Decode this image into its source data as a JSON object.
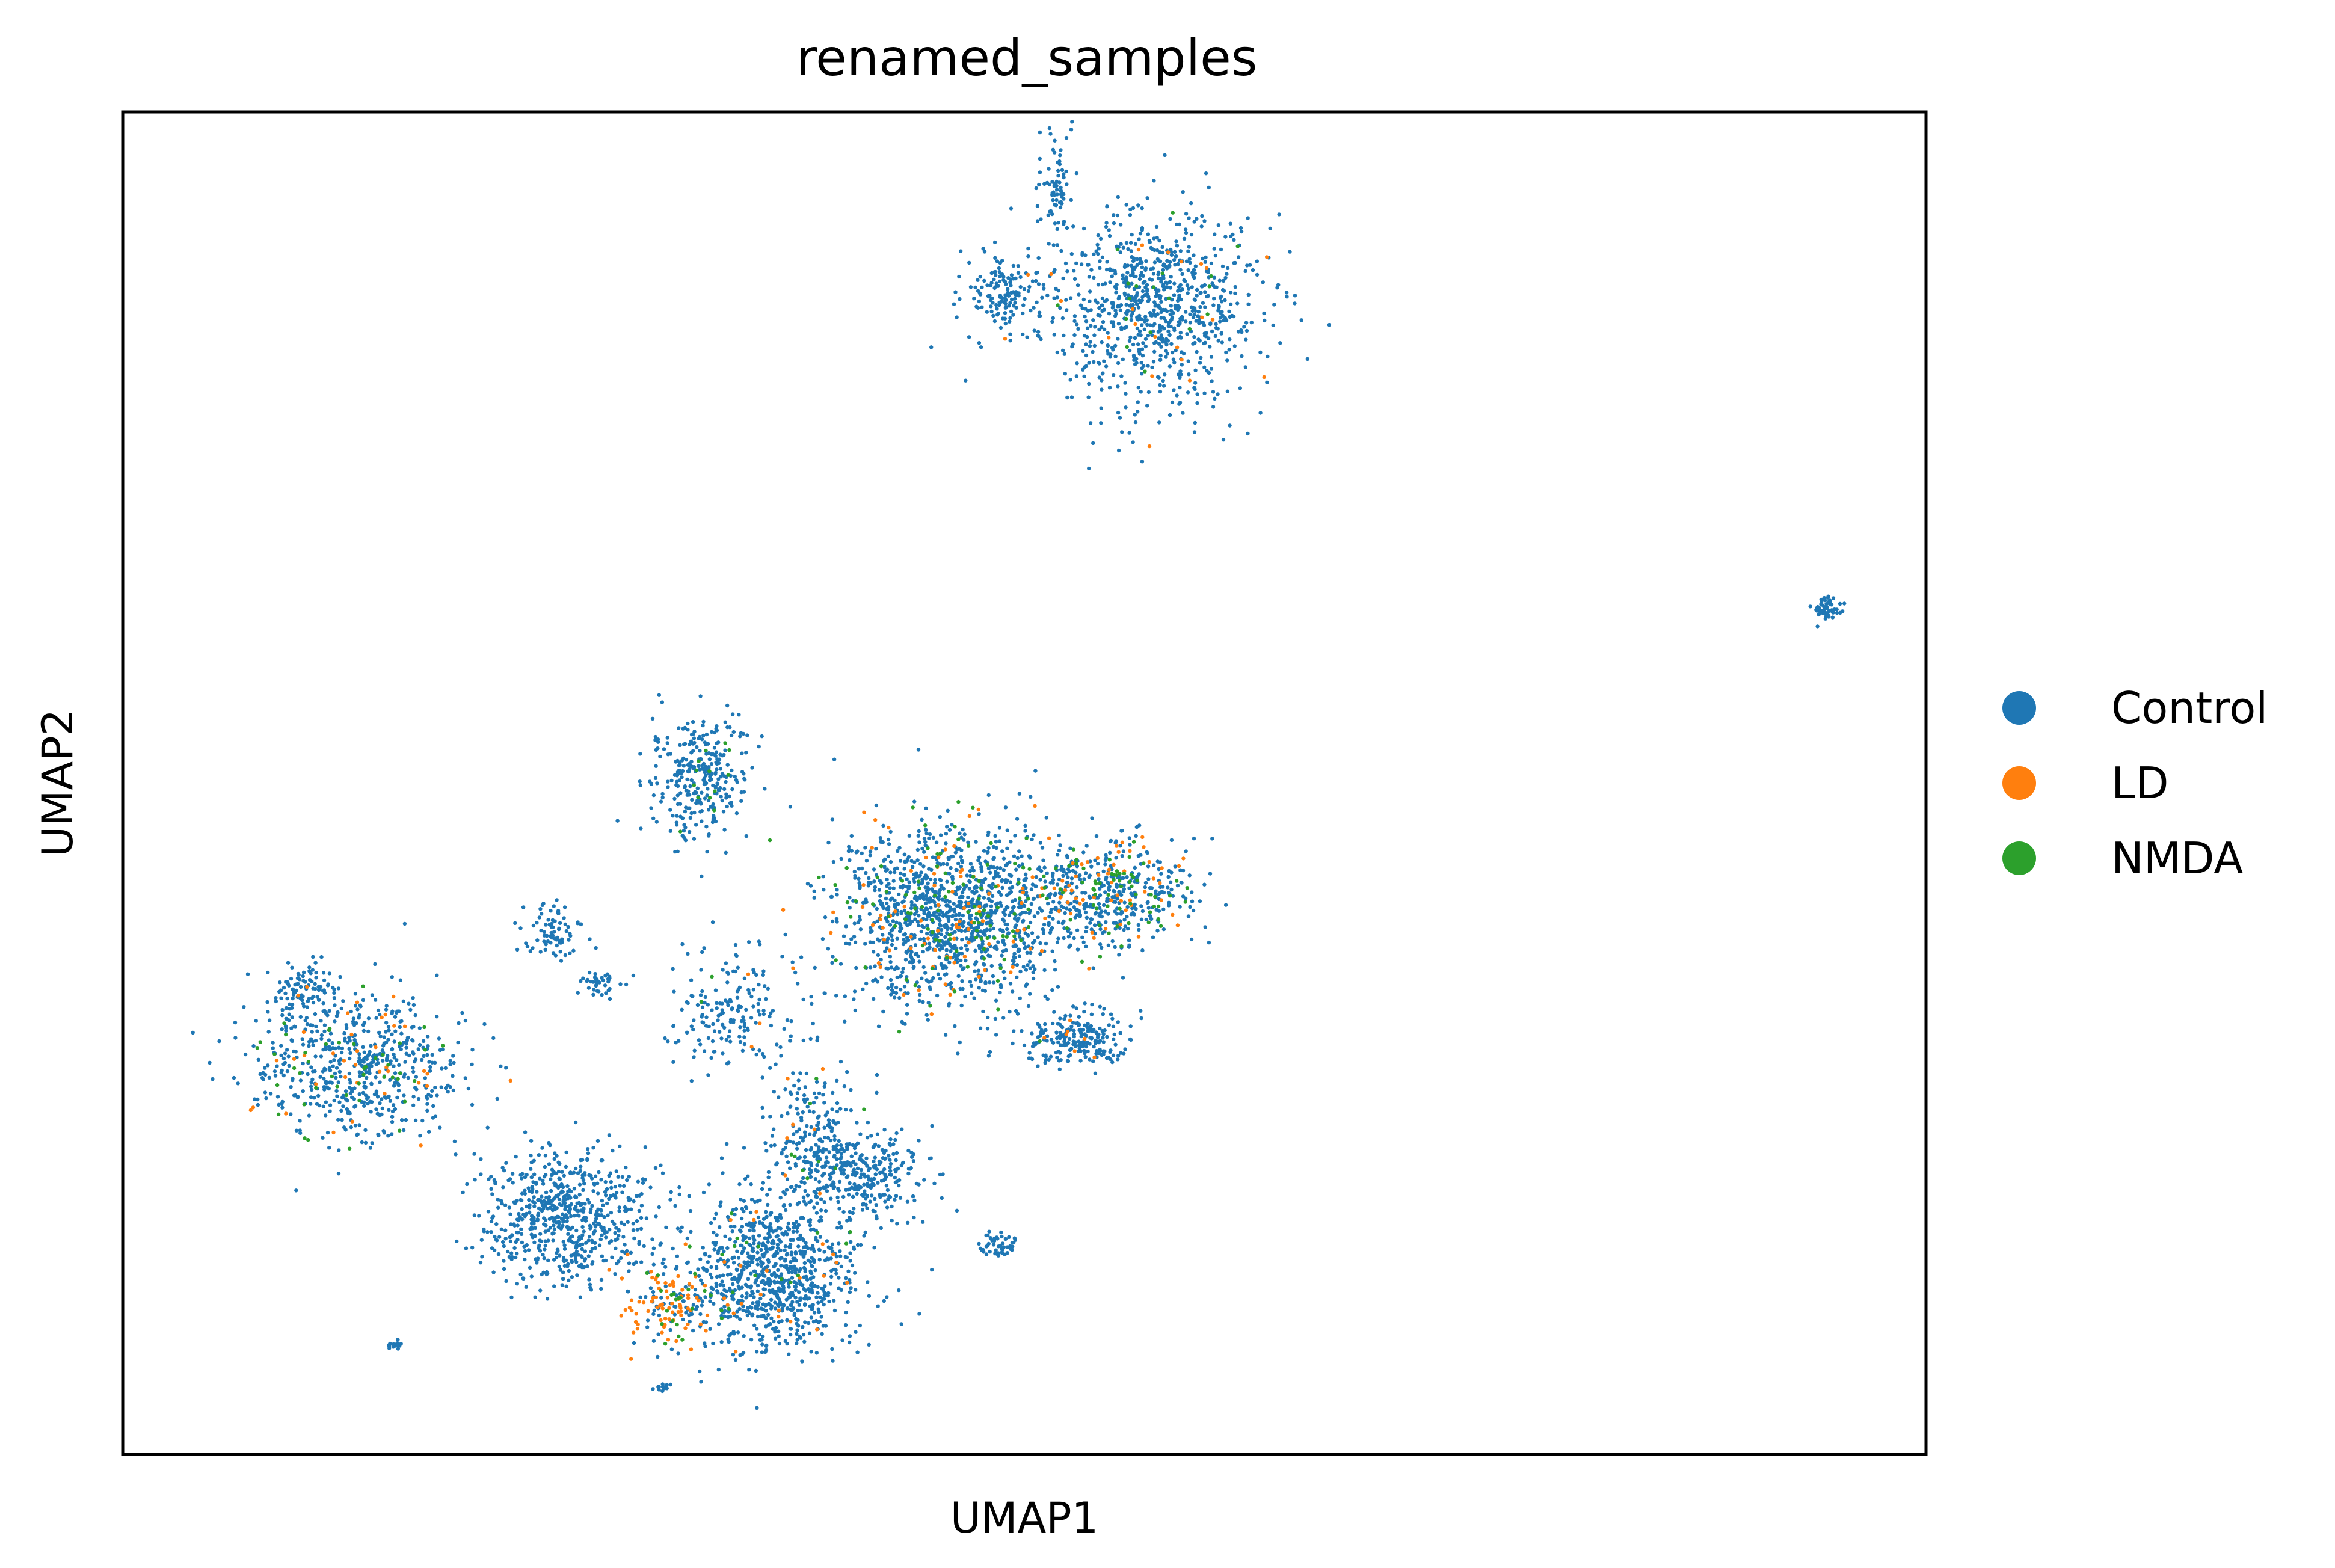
{
  "chart_data": {
    "type": "scatter",
    "title": "renamed_samples",
    "xlabel": "UMAP1",
    "ylabel": "UMAP2",
    "xlim": [
      0,
      1
    ],
    "ylim": [
      0,
      1
    ],
    "grid": false,
    "ticks": false,
    "legend_placement": "right",
    "series": [
      {
        "name": "Control",
        "color": "#1f77b4"
      },
      {
        "name": "LD",
        "color": "#ff7f0e"
      },
      {
        "name": "NMDA",
        "color": "#2ca02c"
      }
    ],
    "clusters": [
      {
        "cx": 0.57,
        "cy": 0.855,
        "rx": 0.055,
        "ry": 0.065,
        "n": 900,
        "mix": [
          0.96,
          0.02,
          0.02
        ]
      },
      {
        "cx": 0.49,
        "cy": 0.865,
        "rx": 0.02,
        "ry": 0.025,
        "n": 140,
        "mix": [
          0.98,
          0.01,
          0.01
        ]
      },
      {
        "cx": 0.518,
        "cy": 0.95,
        "rx": 0.008,
        "ry": 0.04,
        "n": 70,
        "mix": [
          1,
          0,
          0
        ]
      },
      {
        "cx": 0.945,
        "cy": 0.63,
        "rx": 0.008,
        "ry": 0.008,
        "n": 60,
        "mix": [
          1,
          0,
          0
        ]
      },
      {
        "cx": 0.32,
        "cy": 0.505,
        "rx": 0.025,
        "ry": 0.04,
        "n": 320,
        "mix": [
          0.94,
          0.0,
          0.06
        ]
      },
      {
        "cx": 0.46,
        "cy": 0.4,
        "rx": 0.06,
        "ry": 0.06,
        "n": 1400,
        "mix": [
          0.86,
          0.07,
          0.07
        ]
      },
      {
        "cx": 0.55,
        "cy": 0.42,
        "rx": 0.04,
        "ry": 0.035,
        "n": 450,
        "mix": [
          0.72,
          0.16,
          0.12
        ]
      },
      {
        "cx": 0.53,
        "cy": 0.31,
        "rx": 0.025,
        "ry": 0.018,
        "n": 220,
        "mix": [
          0.97,
          0.02,
          0.01
        ]
      },
      {
        "cx": 0.13,
        "cy": 0.29,
        "rx": 0.055,
        "ry": 0.05,
        "n": 650,
        "mix": [
          0.88,
          0.06,
          0.06
        ]
      },
      {
        "cx": 0.1,
        "cy": 0.345,
        "rx": 0.015,
        "ry": 0.02,
        "n": 90,
        "mix": [
          1,
          0,
          0
        ]
      },
      {
        "cx": 0.24,
        "cy": 0.39,
        "rx": 0.015,
        "ry": 0.02,
        "n": 80,
        "mix": [
          1,
          0,
          0
        ]
      },
      {
        "cx": 0.265,
        "cy": 0.35,
        "rx": 0.01,
        "ry": 0.01,
        "n": 40,
        "mix": [
          1,
          0,
          0
        ]
      },
      {
        "cx": 0.34,
        "cy": 0.33,
        "rx": 0.03,
        "ry": 0.04,
        "n": 180,
        "mix": [
          0.96,
          0.02,
          0.02
        ]
      },
      {
        "cx": 0.38,
        "cy": 0.24,
        "rx": 0.025,
        "ry": 0.06,
        "n": 200,
        "mix": [
          0.95,
          0.03,
          0.02
        ]
      },
      {
        "cx": 0.245,
        "cy": 0.175,
        "rx": 0.04,
        "ry": 0.045,
        "n": 650,
        "mix": [
          1,
          0,
          0
        ]
      },
      {
        "cx": 0.36,
        "cy": 0.135,
        "rx": 0.045,
        "ry": 0.055,
        "n": 900,
        "mix": [
          0.96,
          0.02,
          0.02
        ]
      },
      {
        "cx": 0.41,
        "cy": 0.21,
        "rx": 0.03,
        "ry": 0.03,
        "n": 300,
        "mix": [
          1,
          0,
          0
        ]
      },
      {
        "cx": 0.305,
        "cy": 0.11,
        "rx": 0.022,
        "ry": 0.025,
        "n": 150,
        "mix": [
          0.4,
          0.45,
          0.15
        ]
      },
      {
        "cx": 0.485,
        "cy": 0.155,
        "rx": 0.012,
        "ry": 0.01,
        "n": 50,
        "mix": [
          1,
          0,
          0
        ]
      },
      {
        "cx": 0.15,
        "cy": 0.08,
        "rx": 0.004,
        "ry": 0.004,
        "n": 15,
        "mix": [
          1,
          0,
          0
        ]
      },
      {
        "cx": 0.3,
        "cy": 0.05,
        "rx": 0.007,
        "ry": 0.003,
        "n": 15,
        "mix": [
          1,
          0,
          0
        ]
      }
    ]
  }
}
